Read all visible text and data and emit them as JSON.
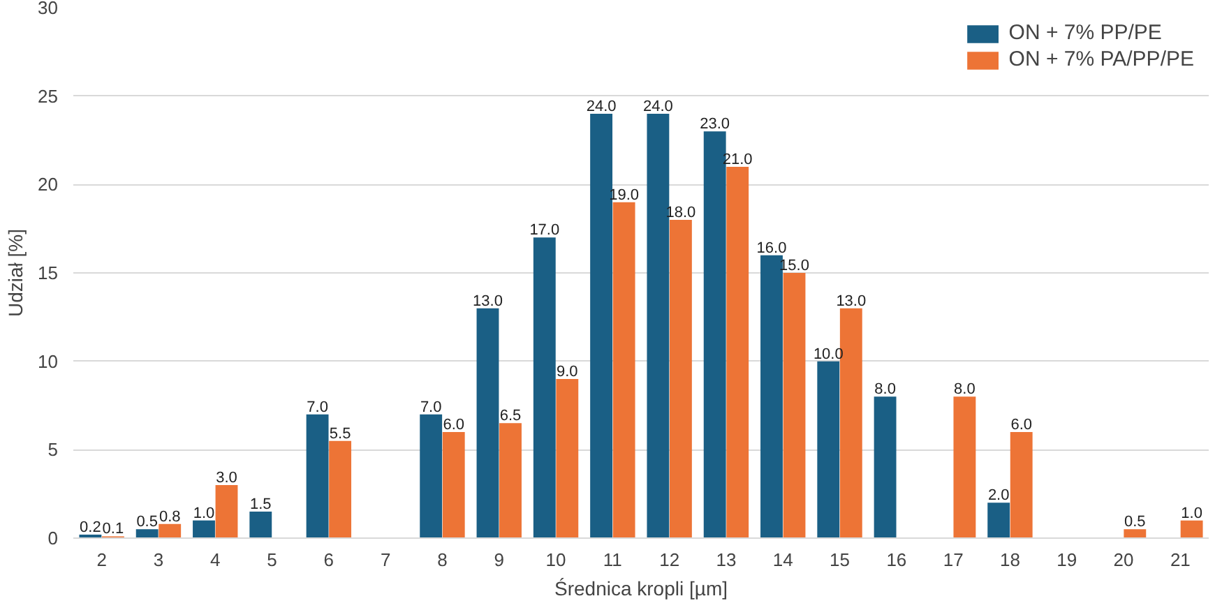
{
  "chart_data": {
    "type": "bar",
    "xlabel": "Średnica kropli [µm]",
    "ylabel": "Udział [%]",
    "categories": [
      "2",
      "3",
      "4",
      "5",
      "6",
      "7",
      "8",
      "9",
      "10",
      "11",
      "12",
      "13",
      "14",
      "15",
      "16",
      "17",
      "18",
      "19",
      "20",
      "21"
    ],
    "series": [
      {
        "name": "ON + 7% PP/PE",
        "color": "#1a5f85",
        "values": [
          0.2,
          0.5,
          1.0,
          1.5,
          7.0,
          null,
          7.0,
          13.0,
          17.0,
          24.0,
          24.0,
          23.0,
          16.0,
          10.0,
          8.0,
          null,
          2.0,
          null,
          null,
          null
        ],
        "value_labels": [
          "0.2",
          "0.5",
          "1.0",
          "1.5",
          "7.0",
          null,
          "7.0",
          "13.0",
          "17.0",
          "24.0",
          "24.0",
          "23.0",
          "16.0",
          "10.0",
          "8.0",
          null,
          "2.0",
          null,
          null,
          null
        ]
      },
      {
        "name": "ON + 7% PA/PP/PE",
        "color": "#ed7436",
        "values": [
          0.1,
          0.8,
          3.0,
          null,
          5.5,
          null,
          6.0,
          6.5,
          9.0,
          19.0,
          18.0,
          21.0,
          15.0,
          13.0,
          null,
          8.0,
          6.0,
          null,
          0.5,
          1.0
        ],
        "value_labels": [
          "0.1",
          "0.8",
          "3.0",
          null,
          "5.5",
          null,
          "6.0",
          "6.5",
          "9.0",
          "19.0",
          "18.0",
          "21.0",
          "15.0",
          "13.0",
          null,
          "8.0",
          "6.0",
          null,
          "0.5",
          "1.0"
        ]
      }
    ],
    "ylim": [
      0,
      30
    ],
    "yticks": [
      0,
      5,
      10,
      15,
      20,
      25,
      30
    ],
    "grid": "y",
    "legend": "top right"
  }
}
